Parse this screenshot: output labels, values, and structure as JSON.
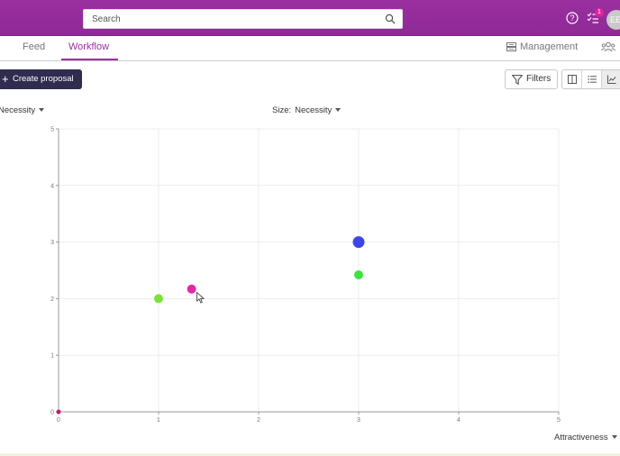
{
  "header": {
    "search_placeholder": "Search",
    "task_count": "1",
    "avatar_initials": "EE",
    "icons": [
      "search-icon",
      "help-icon",
      "tasks-icon",
      "avatar"
    ]
  },
  "tabs": {
    "feed": "Feed",
    "workflow": "Workflow",
    "management": "Management"
  },
  "toolbar": {
    "create_label": "Create proposal",
    "filters_label": "Filters"
  },
  "selectors": {
    "y_axis_value": "Necessity",
    "size_label": "Size:",
    "size_value": "Necessity",
    "x_axis_value": "Attractiveness"
  },
  "colors": {
    "brand": "#9a2fa0",
    "create_button": "#2f2c4f"
  },
  "chart_data": {
    "type": "scatter",
    "xlim": [
      0,
      5
    ],
    "ylim": [
      0,
      5
    ],
    "x_ticks": [
      "0",
      "1",
      "2",
      "3",
      "4",
      "5"
    ],
    "y_ticks": [
      "0",
      "1",
      "2",
      "3",
      "4",
      "5"
    ],
    "grid": true,
    "points": [
      {
        "x": 0,
        "y": 0,
        "size": 1,
        "color": "#c2187a"
      },
      {
        "x": 1,
        "y": 2,
        "size": 2,
        "color": "#7fe03a"
      },
      {
        "x": 1.33,
        "y": 2.17,
        "size": 2,
        "color": "#e02aa6"
      },
      {
        "x": 3,
        "y": 2.42,
        "size": 2,
        "color": "#3fe23f"
      },
      {
        "x": 3,
        "y": 3,
        "size": 3,
        "color": "#3b45e8"
      }
    ]
  }
}
